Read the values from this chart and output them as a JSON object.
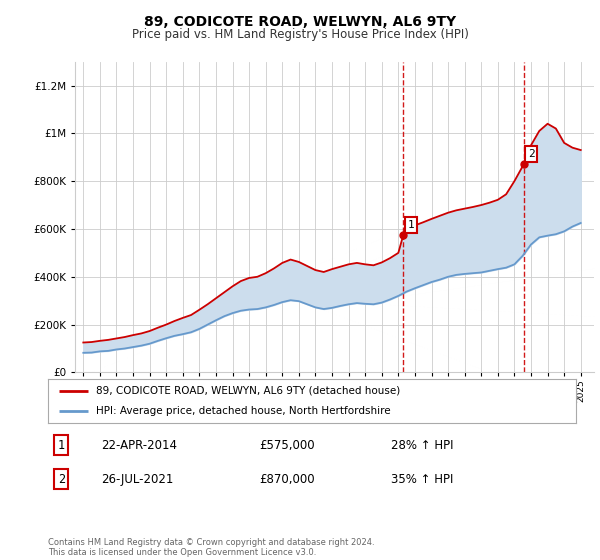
{
  "title": "89, CODICOTE ROAD, WELWYN, AL6 9TY",
  "subtitle": "Price paid vs. HM Land Registry's House Price Index (HPI)",
  "legend_line1": "89, CODICOTE ROAD, WELWYN, AL6 9TY (detached house)",
  "legend_line2": "HPI: Average price, detached house, North Hertfordshire",
  "footer": "Contains HM Land Registry data © Crown copyright and database right 2024.\nThis data is licensed under the Open Government Licence v3.0.",
  "point1_date": "22-APR-2014",
  "point1_price": "£575,000",
  "point1_hpi": "28% ↑ HPI",
  "point1_year": 2014.3,
  "point1_value": 575000,
  "point2_date": "26-JUL-2021",
  "point2_price": "£870,000",
  "point2_hpi": "35% ↑ HPI",
  "point2_year": 2021.56,
  "point2_value": 870000,
  "red_color": "#cc0000",
  "blue_color": "#6699cc",
  "fill_color": "#ccdded",
  "background_color": "#ffffff",
  "grid_color": "#cccccc",
  "ylim": [
    0,
    1300000
  ],
  "xlim_start": 1994.5,
  "xlim_end": 2025.8,
  "hpi_years": [
    1995.0,
    1995.5,
    1996.0,
    1996.5,
    1997.0,
    1997.5,
    1998.0,
    1998.5,
    1999.0,
    1999.5,
    2000.0,
    2000.5,
    2001.0,
    2001.5,
    2002.0,
    2002.5,
    2003.0,
    2003.5,
    2004.0,
    2004.5,
    2005.0,
    2005.5,
    2006.0,
    2006.5,
    2007.0,
    2007.5,
    2008.0,
    2008.5,
    2009.0,
    2009.5,
    2010.0,
    2010.5,
    2011.0,
    2011.5,
    2012.0,
    2012.5,
    2013.0,
    2013.5,
    2014.0,
    2014.5,
    2015.0,
    2015.5,
    2016.0,
    2016.5,
    2017.0,
    2017.5,
    2018.0,
    2018.5,
    2019.0,
    2019.5,
    2020.0,
    2020.5,
    2021.0,
    2021.5,
    2022.0,
    2022.5,
    2023.0,
    2023.5,
    2024.0,
    2024.5,
    2025.0
  ],
  "hpi_values": [
    82000,
    83000,
    88000,
    90000,
    96000,
    100000,
    106000,
    112000,
    120000,
    132000,
    143000,
    153000,
    160000,
    168000,
    182000,
    200000,
    218000,
    235000,
    248000,
    258000,
    263000,
    265000,
    272000,
    282000,
    294000,
    302000,
    298000,
    285000,
    272000,
    265000,
    270000,
    278000,
    285000,
    290000,
    287000,
    285000,
    292000,
    305000,
    320000,
    338000,
    352000,
    365000,
    378000,
    388000,
    400000,
    408000,
    412000,
    415000,
    418000,
    425000,
    432000,
    438000,
    452000,
    488000,
    535000,
    565000,
    572000,
    578000,
    590000,
    610000,
    625000
  ],
  "red_years": [
    1995.0,
    1995.5,
    1996.0,
    1996.5,
    1997.0,
    1997.5,
    1998.0,
    1998.5,
    1999.0,
    1999.5,
    2000.0,
    2000.5,
    2001.0,
    2001.5,
    2002.0,
    2002.5,
    2003.0,
    2003.5,
    2004.0,
    2004.5,
    2005.0,
    2005.5,
    2006.0,
    2006.5,
    2007.0,
    2007.5,
    2008.0,
    2008.5,
    2009.0,
    2009.5,
    2010.0,
    2010.5,
    2011.0,
    2011.5,
    2012.0,
    2012.5,
    2013.0,
    2013.5,
    2014.0,
    2014.3,
    2014.5,
    2015.0,
    2015.5,
    2016.0,
    2016.5,
    2017.0,
    2017.5,
    2018.0,
    2018.5,
    2019.0,
    2019.5,
    2020.0,
    2020.5,
    2021.0,
    2021.56,
    2022.0,
    2022.5,
    2023.0,
    2023.5,
    2024.0,
    2024.5,
    2025.0
  ],
  "red_values": [
    125000,
    127000,
    132000,
    136000,
    142000,
    148000,
    156000,
    163000,
    173000,
    187000,
    200000,
    215000,
    228000,
    240000,
    262000,
    285000,
    310000,
    335000,
    360000,
    382000,
    395000,
    400000,
    415000,
    435000,
    458000,
    472000,
    462000,
    445000,
    428000,
    420000,
    432000,
    442000,
    452000,
    458000,
    452000,
    448000,
    460000,
    478000,
    500000,
    575000,
    590000,
    615000,
    628000,
    642000,
    655000,
    668000,
    678000,
    685000,
    692000,
    700000,
    710000,
    722000,
    745000,
    800000,
    870000,
    950000,
    1010000,
    1040000,
    1020000,
    960000,
    940000,
    930000
  ]
}
